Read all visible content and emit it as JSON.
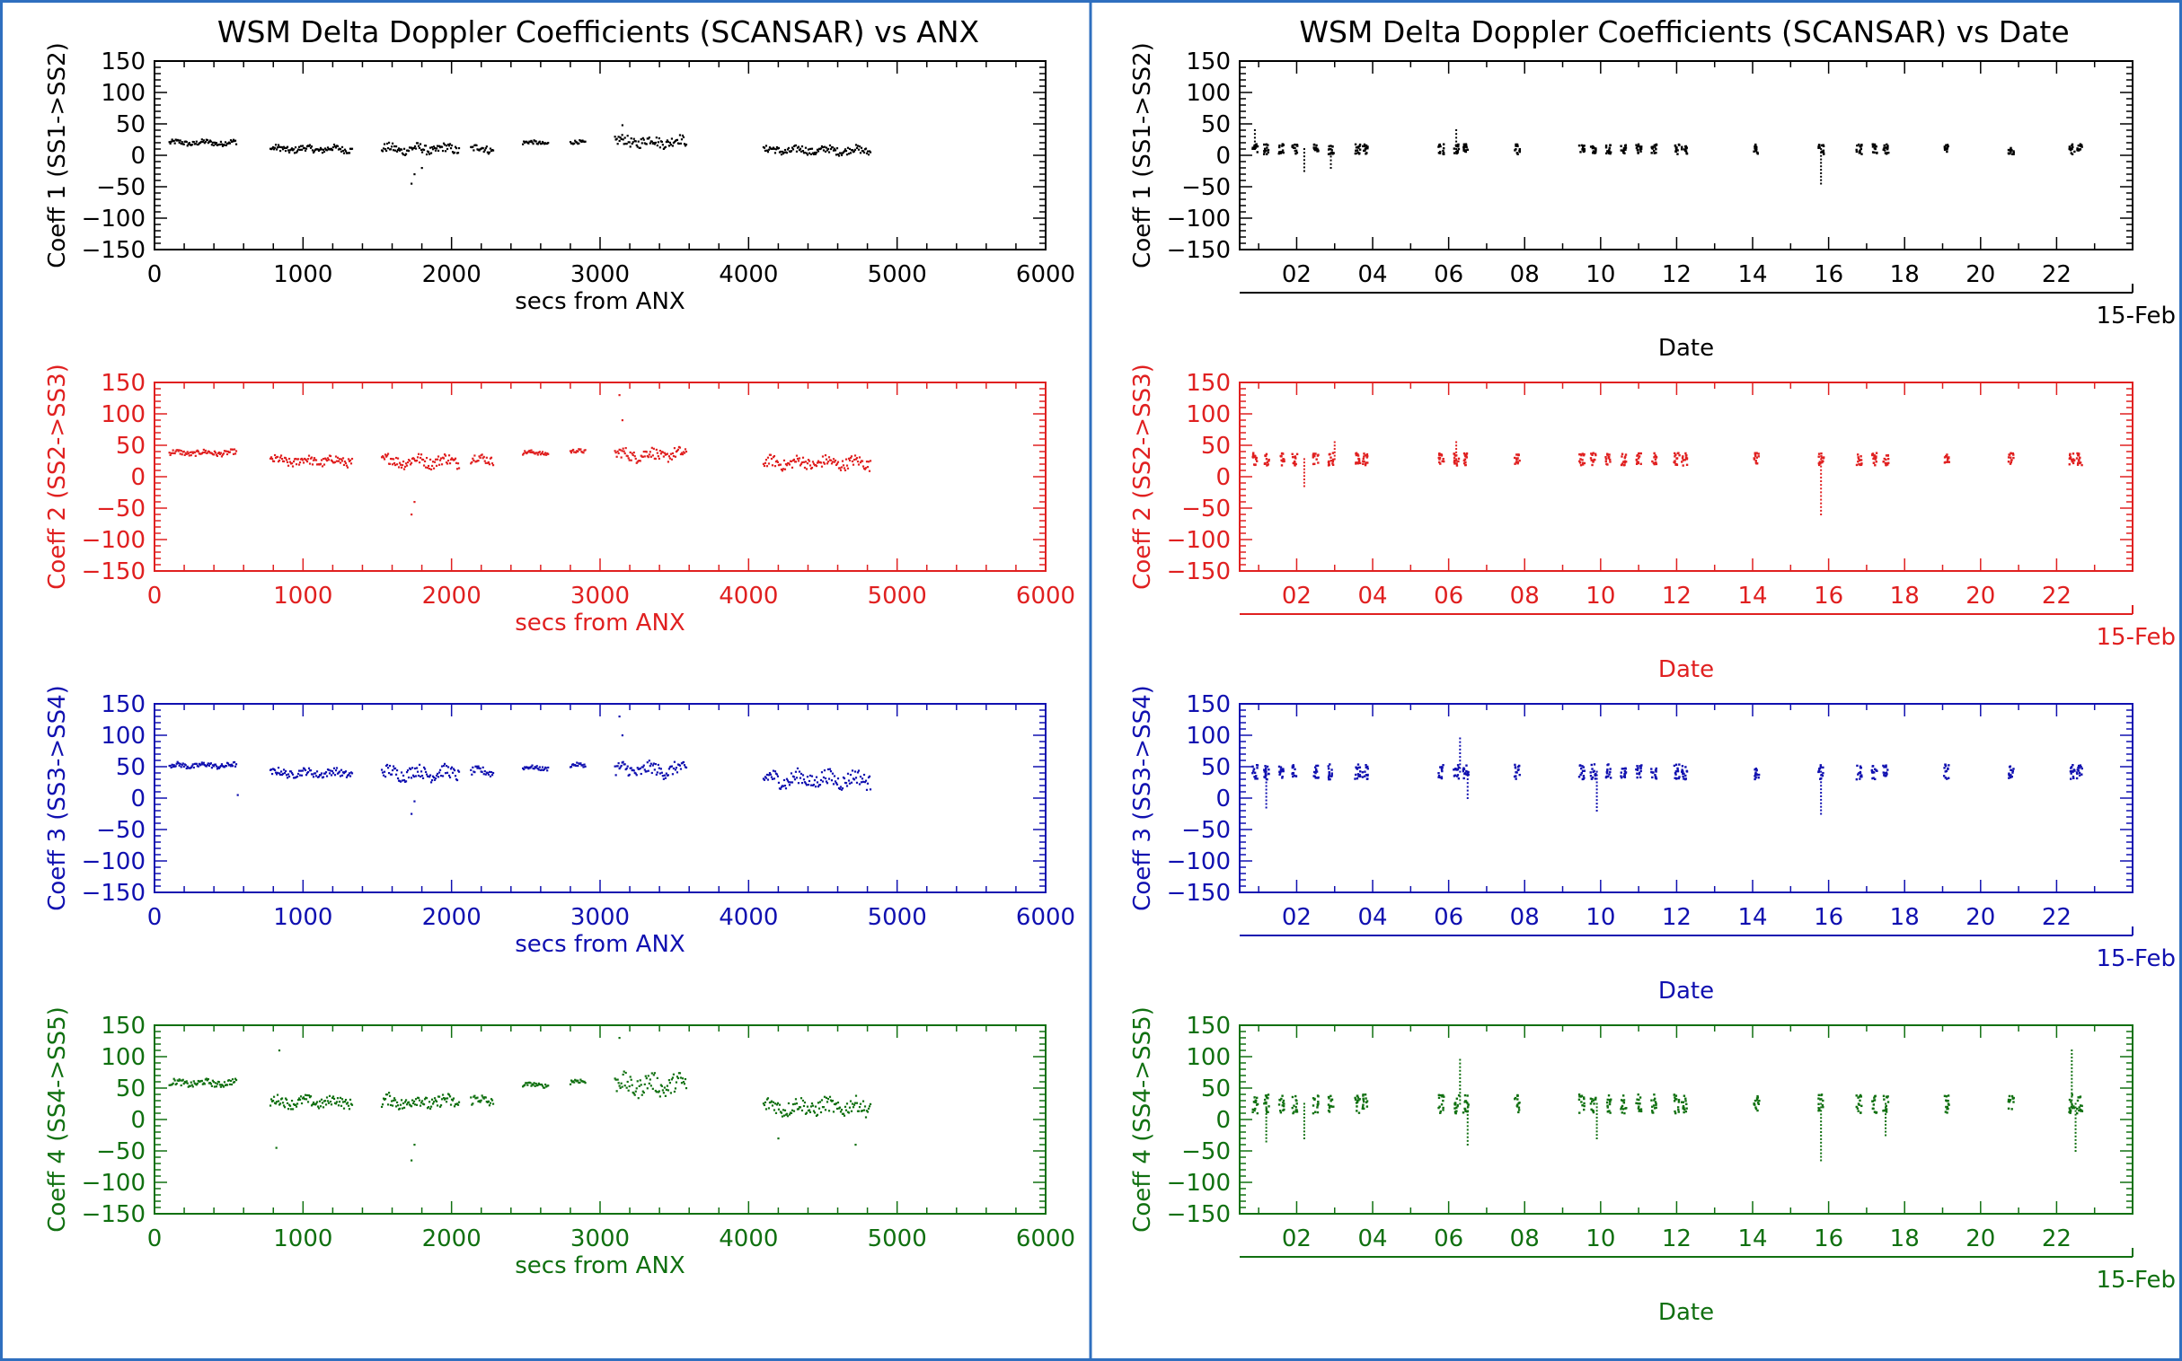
{
  "panels": {
    "left": {
      "title": "WSM Delta Doppler Coefficients (SCANSAR) vs ANX",
      "x_tick_labels": [
        "0",
        "1000",
        "2000",
        "3000",
        "4000",
        "5000",
        "6000"
      ]
    },
    "right": {
      "title": "WSM Delta Doppler Coefficients (SCANSAR) vs Date",
      "x_tick_labels": [
        "02",
        "04",
        "06",
        "08",
        "10",
        "12",
        "14",
        "16",
        "18",
        "20",
        "22"
      ],
      "month_label": "15-Feb"
    }
  },
  "colors": {
    "coeff1": "#000000",
    "coeff2": "#e02020",
    "coeff3": "#1010b0",
    "coeff4": "#107010",
    "divider": "#2f6fbf"
  },
  "chart_data": [
    {
      "type": "scatter",
      "title": "WSM Delta Doppler Coefficients (SCANSAR) vs ANX",
      "xlabel": "secs from ANX",
      "ylabel": "Coeff 1 (SS1->SS2)",
      "xlim": [
        0,
        6000
      ],
      "ylim": [
        -150,
        150
      ],
      "y_tick_labels": [
        "150",
        "100",
        "50",
        "0",
        "−50",
        "−100",
        "−150"
      ],
      "grid": false,
      "color": "#000000",
      "segments": [
        {
          "x": [
            100,
            550
          ],
          "mean": 20,
          "spread": 4
        },
        {
          "x": [
            780,
            1330
          ],
          "mean": 10,
          "spread": 5
        },
        {
          "x": [
            1530,
            2050
          ],
          "mean": 10,
          "spread": 7
        },
        {
          "x": [
            2130,
            2280
          ],
          "mean": 10,
          "spread": 6
        },
        {
          "x": [
            2480,
            2650
          ],
          "mean": 20,
          "spread": 3
        },
        {
          "x": [
            2800,
            2900
          ],
          "mean": 20,
          "spread": 3
        },
        {
          "x": [
            3100,
            3580
          ],
          "mean": 22,
          "spread": 8
        },
        {
          "x": [
            4100,
            4820
          ],
          "mean": 8,
          "spread": 6
        }
      ],
      "spikes": [
        [
          1730,
          -45
        ],
        [
          1750,
          -30
        ],
        [
          1800,
          -20
        ],
        [
          3150,
          48
        ]
      ]
    },
    {
      "type": "scatter",
      "title": "",
      "xlabel": "secs from ANX",
      "ylabel": "Coeff 2 (SS2->SS3)",
      "xlim": [
        0,
        6000
      ],
      "ylim": [
        -150,
        150
      ],
      "y_tick_labels": [
        "150",
        "100",
        "50",
        "0",
        "−50",
        "−100",
        "−150"
      ],
      "grid": false,
      "color": "#e02020",
      "segments": [
        {
          "x": [
            100,
            550
          ],
          "mean": 38,
          "spread": 4
        },
        {
          "x": [
            780,
            1330
          ],
          "mean": 25,
          "spread": 7
        },
        {
          "x": [
            1530,
            2050
          ],
          "mean": 25,
          "spread": 9
        },
        {
          "x": [
            2130,
            2280
          ],
          "mean": 28,
          "spread": 7
        },
        {
          "x": [
            2480,
            2650
          ],
          "mean": 38,
          "spread": 3
        },
        {
          "x": [
            2800,
            2900
          ],
          "mean": 40,
          "spread": 3
        },
        {
          "x": [
            3100,
            3580
          ],
          "mean": 35,
          "spread": 9
        },
        {
          "x": [
            4100,
            4820
          ],
          "mean": 22,
          "spread": 9
        }
      ],
      "spikes": [
        [
          1730,
          -60
        ],
        [
          1750,
          -40
        ],
        [
          3130,
          130
        ],
        [
          3150,
          90
        ]
      ]
    },
    {
      "type": "scatter",
      "title": "",
      "xlabel": "secs from ANX",
      "ylabel": "Coeff 3 (SS3->SS4)",
      "xlim": [
        0,
        6000
      ],
      "ylim": [
        -150,
        150
      ],
      "y_tick_labels": [
        "150",
        "100",
        "50",
        "0",
        "−50",
        "−100",
        "−150"
      ],
      "grid": false,
      "color": "#1010b0",
      "segments": [
        {
          "x": [
            100,
            550
          ],
          "mean": 52,
          "spread": 4
        },
        {
          "x": [
            780,
            1330
          ],
          "mean": 40,
          "spread": 6
        },
        {
          "x": [
            1530,
            2050
          ],
          "mean": 40,
          "spread": 10
        },
        {
          "x": [
            2130,
            2280
          ],
          "mean": 42,
          "spread": 6
        },
        {
          "x": [
            2480,
            2650
          ],
          "mean": 48,
          "spread": 3
        },
        {
          "x": [
            2800,
            2900
          ],
          "mean": 52,
          "spread": 3
        },
        {
          "x": [
            3100,
            3580
          ],
          "mean": 45,
          "spread": 10
        },
        {
          "x": [
            4100,
            4820
          ],
          "mean": 30,
          "spread": 12
        }
      ],
      "spikes": [
        [
          1730,
          -25
        ],
        [
          1750,
          -5
        ],
        [
          3130,
          130
        ],
        [
          3150,
          100
        ],
        [
          560,
          5
        ]
      ]
    },
    {
      "type": "scatter",
      "title": "",
      "xlabel": "secs from ANX",
      "ylabel": "Coeff 4 (SS4->SS5)",
      "xlim": [
        0,
        6000
      ],
      "ylim": [
        -150,
        150
      ],
      "y_tick_labels": [
        "150",
        "100",
        "50",
        "0",
        "−50",
        "−100",
        "−150"
      ],
      "grid": false,
      "color": "#107010",
      "segments": [
        {
          "x": [
            100,
            550
          ],
          "mean": 58,
          "spread": 5
        },
        {
          "x": [
            780,
            1330
          ],
          "mean": 28,
          "spread": 8
        },
        {
          "x": [
            1530,
            2050
          ],
          "mean": 28,
          "spread": 10
        },
        {
          "x": [
            2130,
            2280
          ],
          "mean": 30,
          "spread": 8
        },
        {
          "x": [
            2480,
            2650
          ],
          "mean": 55,
          "spread": 3
        },
        {
          "x": [
            2800,
            2900
          ],
          "mean": 60,
          "spread": 4
        },
        {
          "x": [
            3100,
            3580
          ],
          "mean": 55,
          "spread": 15
        },
        {
          "x": [
            4100,
            4820
          ],
          "mean": 20,
          "spread": 12
        }
      ],
      "spikes": [
        [
          820,
          -45
        ],
        [
          840,
          110
        ],
        [
          1730,
          -65
        ],
        [
          1750,
          -40
        ],
        [
          3130,
          130
        ],
        [
          4200,
          -30
        ],
        [
          4720,
          -40
        ]
      ]
    },
    {
      "type": "scatter",
      "title": "WSM Delta Doppler Coefficients (SCANSAR) vs Date",
      "xlabel": "Date",
      "ylabel": "Coeff 1 (SS1->SS2)",
      "xlim": [
        0.5,
        24
      ],
      "ylim": [
        -150,
        150
      ],
      "y_tick_labels": [
        "150",
        "100",
        "50",
        "0",
        "−50",
        "−100",
        "−150"
      ],
      "grid": false,
      "color": "#000000",
      "days": [
        0.9,
        1.2,
        1.6,
        1.95,
        2.5,
        2.9,
        3.6,
        3.8,
        5.8,
        6.2,
        6.45,
        7.8,
        9.5,
        9.8,
        10.2,
        10.6,
        11.0,
        11.4,
        12.0,
        12.2,
        14.1,
        15.8,
        16.8,
        17.2,
        17.5,
        19.1,
        20.8,
        22.4,
        22.6
      ],
      "mean": 10,
      "spread": 8,
      "spikes": [
        [
          2.2,
          -25
        ],
        [
          2.9,
          -20
        ],
        [
          15.8,
          -45
        ],
        [
          0.9,
          40
        ],
        [
          6.2,
          40
        ]
      ]
    },
    {
      "type": "scatter",
      "title": "",
      "xlabel": "Date",
      "ylabel": "Coeff 2 (SS2->SS3)",
      "xlim": [
        0.5,
        24
      ],
      "ylim": [
        -150,
        150
      ],
      "y_tick_labels": [
        "150",
        "100",
        "50",
        "0",
        "−50",
        "−100",
        "−150"
      ],
      "grid": false,
      "color": "#e02020",
      "days": [
        0.9,
        1.2,
        1.6,
        1.95,
        2.5,
        2.9,
        3.6,
        3.8,
        5.8,
        6.2,
        6.45,
        7.8,
        9.5,
        9.8,
        10.2,
        10.6,
        11.0,
        11.4,
        12.0,
        12.2,
        14.1,
        15.8,
        16.8,
        17.2,
        17.5,
        19.1,
        20.8,
        22.4,
        22.6
      ],
      "mean": 28,
      "spread": 10,
      "spikes": [
        [
          2.2,
          -15
        ],
        [
          15.8,
          -60
        ],
        [
          6.2,
          55
        ],
        [
          3.0,
          55
        ]
      ]
    },
    {
      "type": "scatter",
      "title": "",
      "xlabel": "Date",
      "ylabel": "Coeff 3 (SS3->SS4)",
      "xlim": [
        0.5,
        24
      ],
      "ylim": [
        -150,
        150
      ],
      "y_tick_labels": [
        "150",
        "100",
        "50",
        "0",
        "−50",
        "−100",
        "−150"
      ],
      "grid": false,
      "color": "#1010b0",
      "days": [
        0.9,
        1.2,
        1.6,
        1.95,
        2.5,
        2.9,
        3.6,
        3.8,
        5.8,
        6.2,
        6.45,
        7.8,
        9.5,
        9.8,
        10.2,
        10.6,
        11.0,
        11.4,
        12.0,
        12.2,
        14.1,
        15.8,
        16.8,
        17.2,
        17.5,
        19.1,
        20.8,
        22.4,
        22.6
      ],
      "mean": 42,
      "spread": 12,
      "spikes": [
        [
          1.2,
          -15
        ],
        [
          9.9,
          -20
        ],
        [
          15.8,
          -25
        ],
        [
          6.3,
          95
        ],
        [
          6.5,
          0
        ]
      ]
    },
    {
      "type": "scatter",
      "title": "",
      "xlabel": "Date",
      "ylabel": "Coeff 4 (SS4->SS5)",
      "xlim": [
        0.5,
        24
      ],
      "ylim": [
        -150,
        150
      ],
      "y_tick_labels": [
        "150",
        "100",
        "50",
        "0",
        "−50",
        "−100",
        "−150"
      ],
      "grid": false,
      "color": "#107010",
      "days": [
        0.9,
        1.2,
        1.6,
        1.95,
        2.5,
        2.9,
        3.6,
        3.8,
        5.8,
        6.2,
        6.45,
        7.8,
        9.5,
        9.8,
        10.2,
        10.6,
        11.0,
        11.4,
        12.0,
        12.2,
        14.1,
        15.8,
        16.8,
        17.2,
        17.5,
        19.1,
        20.8,
        22.4,
        22.6
      ],
      "mean": 25,
      "spread": 15,
      "spikes": [
        [
          1.2,
          -35
        ],
        [
          2.2,
          -30
        ],
        [
          6.3,
          95
        ],
        [
          6.5,
          -40
        ],
        [
          9.9,
          -30
        ],
        [
          15.8,
          -65
        ],
        [
          17.5,
          -25
        ],
        [
          22.4,
          110
        ],
        [
          22.5,
          -50
        ]
      ]
    }
  ]
}
